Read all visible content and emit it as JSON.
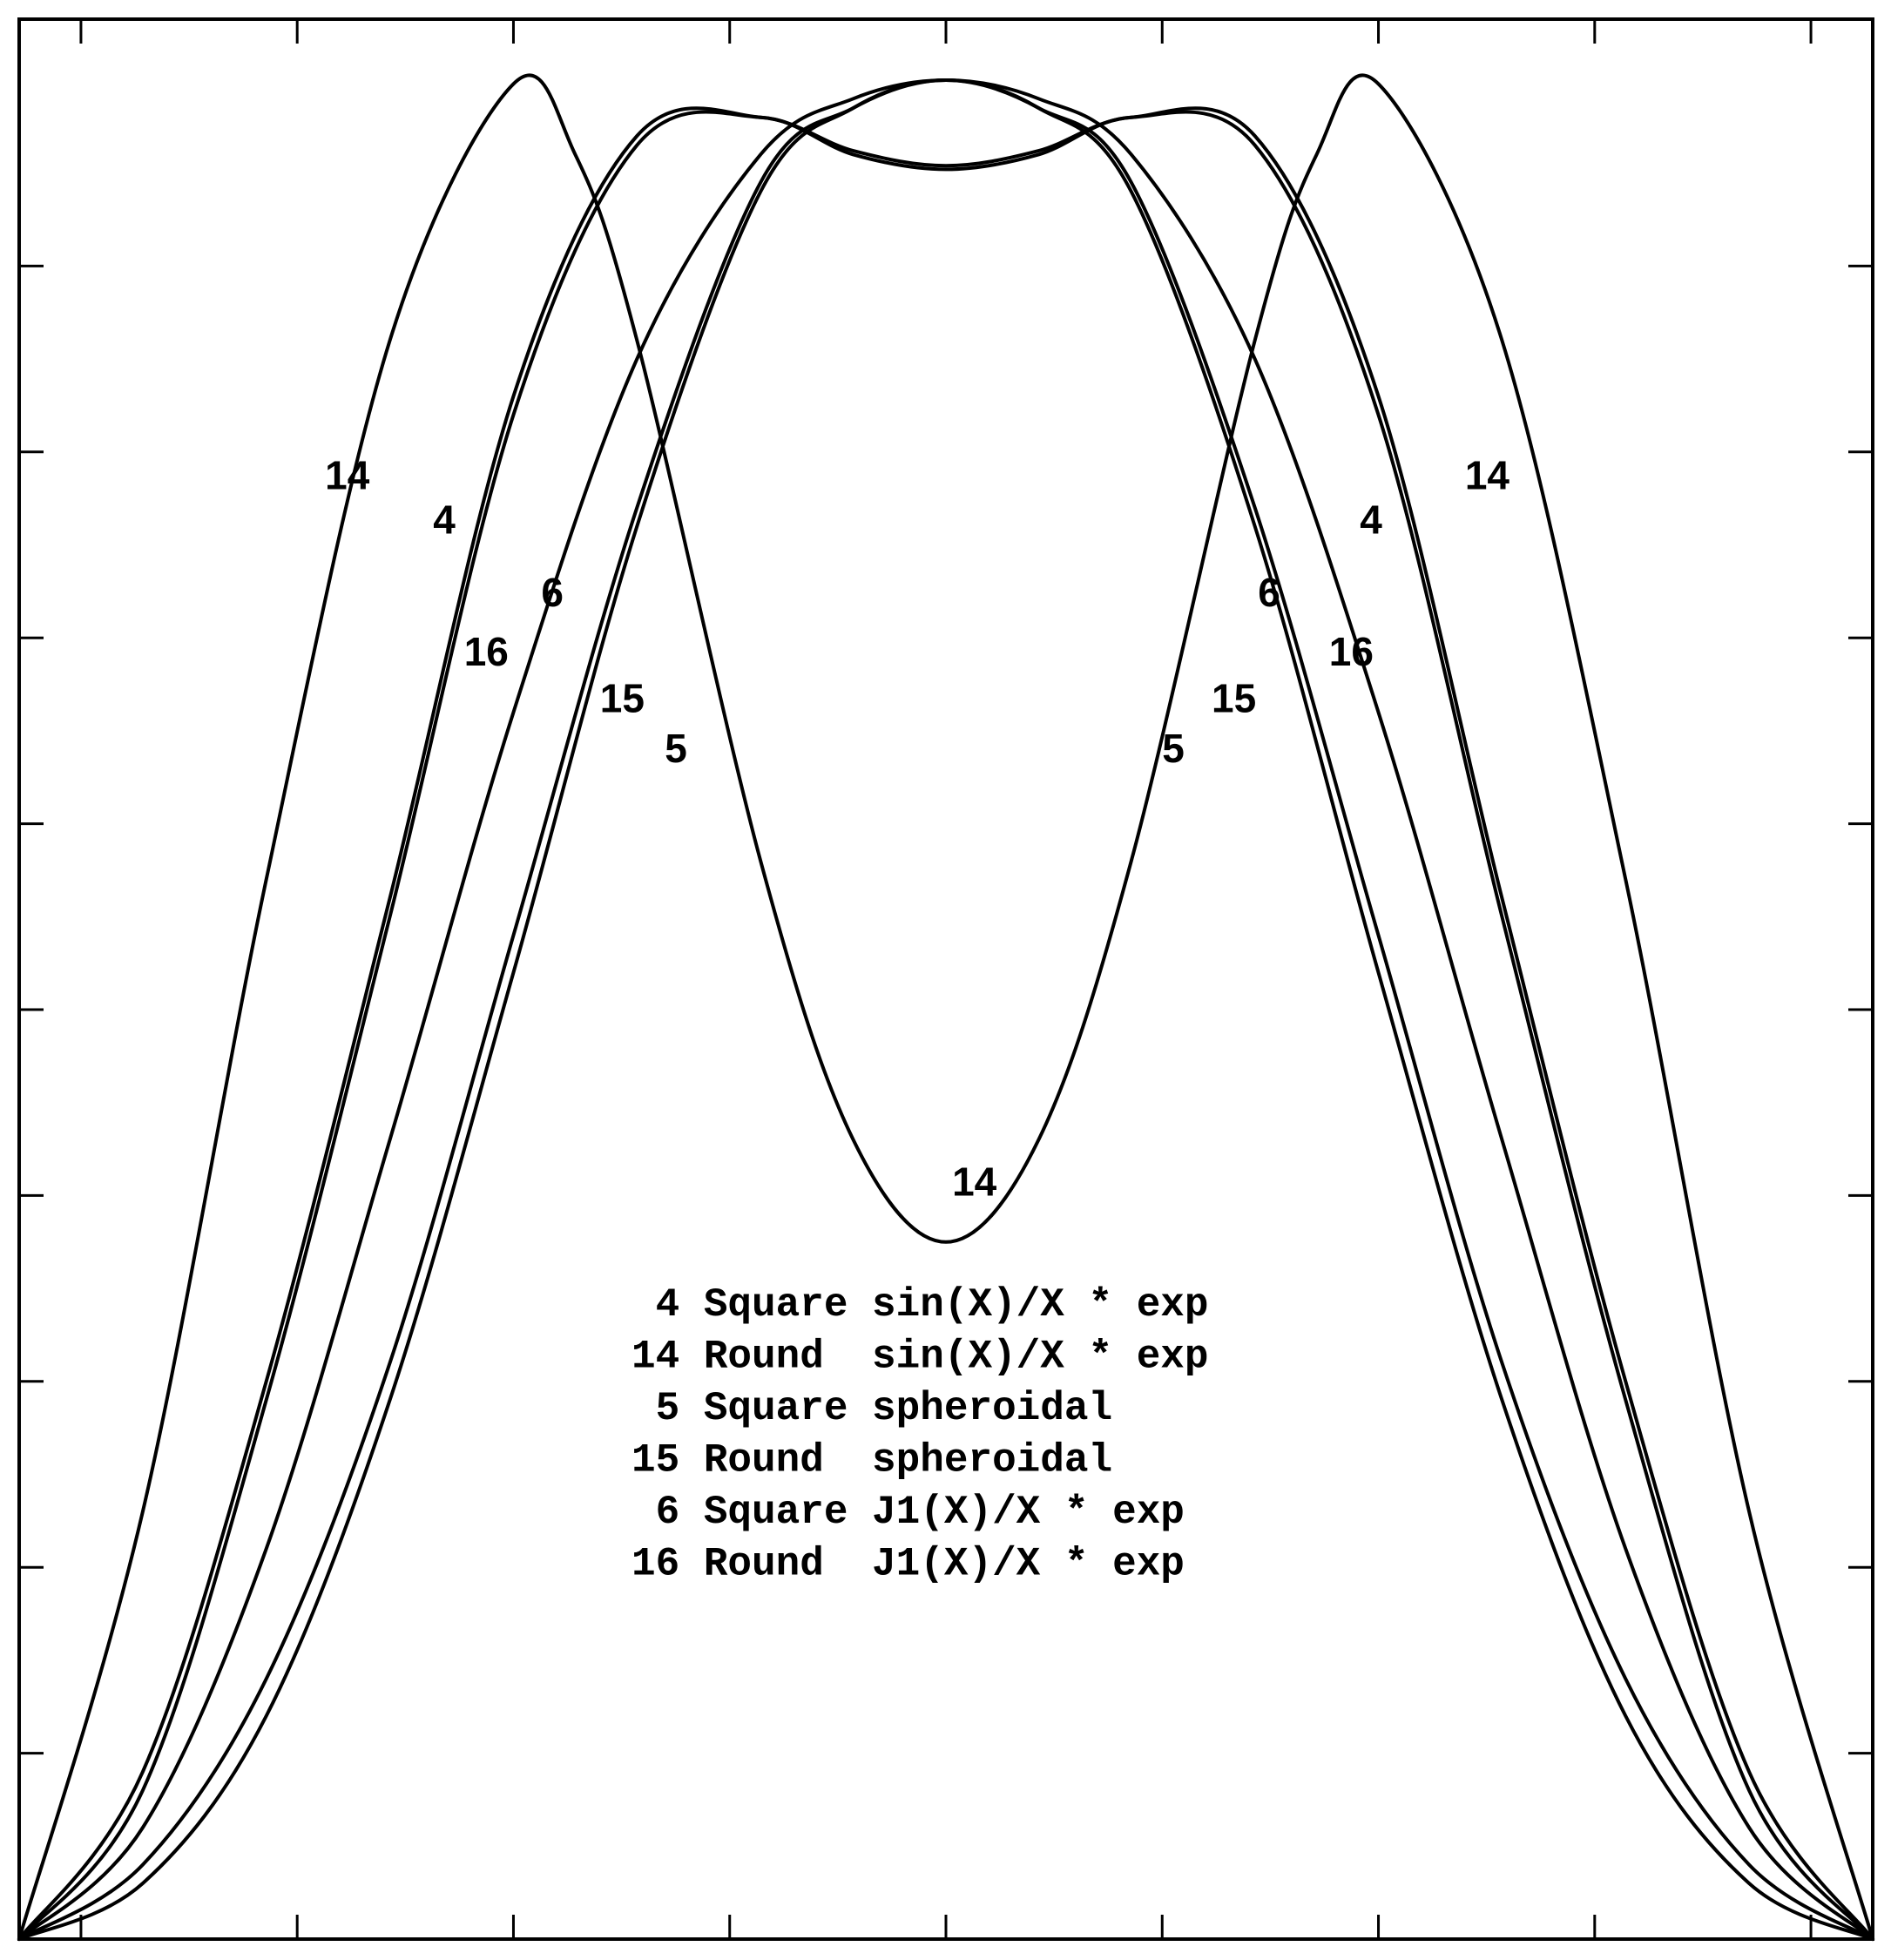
{
  "chart_data": {
    "type": "line",
    "title": "",
    "xlabel": "",
    "ylabel": "",
    "xlim": [
      -3,
      3
    ],
    "ylim": [
      0,
      1.0
    ],
    "grid": false,
    "x_ticks": [
      -2.8,
      -2.1,
      -1.4,
      -0.7,
      0,
      0.7,
      1.4,
      2.1,
      2.8
    ],
    "y_ticks": [
      0.1,
      0.2,
      0.3,
      0.4,
      0.5,
      0.6,
      0.7,
      0.8,
      0.9
    ],
    "series": [
      {
        "name": "4",
        "x": [
          -3,
          -2.6,
          -2.2,
          -1.8,
          -1.4,
          -1.0,
          -0.6,
          -0.3,
          0,
          0.3,
          0.6,
          1.0,
          1.4,
          1.8,
          2.2,
          2.6,
          3
        ],
        "y": [
          0,
          0.09,
          0.3,
          0.56,
          0.83,
          0.97,
          0.98,
          0.962,
          0.954,
          0.962,
          0.98,
          0.97,
          0.83,
          0.56,
          0.3,
          0.09,
          0
        ]
      },
      {
        "name": "14",
        "x": [
          -3,
          -2.6,
          -2.2,
          -1.8,
          -1.4,
          -1.2,
          -1.0,
          -0.6,
          -0.3,
          0,
          0.3,
          0.6,
          1.0,
          1.2,
          1.4,
          1.8,
          2.2,
          2.6,
          3
        ],
        "y": [
          0,
          0.23,
          0.57,
          0.86,
          0.998,
          0.96,
          0.86,
          0.58,
          0.43,
          0.375,
          0.43,
          0.58,
          0.86,
          0.96,
          0.998,
          0.86,
          0.57,
          0.23,
          0
        ]
      },
      {
        "name": "5",
        "x": [
          -3,
          -2.6,
          -2.2,
          -1.8,
          -1.4,
          -1.0,
          -0.6,
          -0.3,
          0,
          0.3,
          0.6,
          1.0,
          1.4,
          1.8,
          2.2,
          2.6,
          3
        ],
        "y": [
          0,
          0.03,
          0.12,
          0.29,
          0.52,
          0.76,
          0.94,
          0.985,
          1.0,
          0.985,
          0.94,
          0.76,
          0.52,
          0.29,
          0.12,
          0.03,
          0
        ]
      },
      {
        "name": "15",
        "x": [
          -3,
          -2.6,
          -2.2,
          -1.8,
          -1.4,
          -1.0,
          -0.6,
          -0.3,
          0,
          0.3,
          0.6,
          1.0,
          1.4,
          1.8,
          2.2,
          2.6,
          3
        ],
        "y": [
          0,
          0.04,
          0.14,
          0.31,
          0.54,
          0.77,
          0.945,
          0.985,
          1.0,
          0.985,
          0.945,
          0.77,
          0.54,
          0.31,
          0.14,
          0.04,
          0
        ]
      },
      {
        "name": "6",
        "x": [
          -3,
          -2.6,
          -2.2,
          -1.8,
          -1.4,
          -1.0,
          -0.6,
          -0.3,
          0,
          0.3,
          0.6,
          1.0,
          1.4,
          1.8,
          2.2,
          2.6,
          3
        ],
        "y": [
          0,
          0.06,
          0.21,
          0.43,
          0.66,
          0.85,
          0.96,
          0.99,
          1.0,
          0.99,
          0.96,
          0.85,
          0.66,
          0.43,
          0.21,
          0.06,
          0
        ]
      },
      {
        "name": "16",
        "x": [
          -3,
          -2.6,
          -2.2,
          -1.8,
          -1.4,
          -1.0,
          -0.6,
          -0.3,
          0,
          0.3,
          0.6,
          1.0,
          1.4,
          1.8,
          2.2,
          2.6,
          3
        ],
        "y": [
          0,
          0.08,
          0.29,
          0.55,
          0.82,
          0.965,
          0.98,
          0.96,
          0.952,
          0.96,
          0.98,
          0.965,
          0.82,
          0.55,
          0.29,
          0.08,
          0
        ]
      }
    ],
    "curve_labels": [
      {
        "text": "14",
        "x": -2.01,
        "y": 0.78
      },
      {
        "text": "4",
        "x": -1.66,
        "y": 0.756
      },
      {
        "text": "6",
        "x": -1.31,
        "y": 0.717
      },
      {
        "text": "16",
        "x": -1.56,
        "y": 0.685
      },
      {
        "text": "15",
        "x": -1.12,
        "y": 0.66
      },
      {
        "text": "5",
        "x": -0.91,
        "y": 0.633
      },
      {
        "text": "14",
        "x": 0.02,
        "y": 0.4
      },
      {
        "text": "5",
        "x": 0.7,
        "y": 0.633
      },
      {
        "text": "15",
        "x": 0.86,
        "y": 0.66
      },
      {
        "text": "6",
        "x": 1.01,
        "y": 0.717
      },
      {
        "text": "16",
        "x": 1.24,
        "y": 0.685
      },
      {
        "text": "4",
        "x": 1.34,
        "y": 0.756
      },
      {
        "text": "14",
        "x": 1.68,
        "y": 0.78
      }
    ],
    "legend": [
      " 4 Square sin(X)/X * exp",
      "14 Round  sin(X)/X * exp",
      " 5 Square spheroidal",
      "15 Round  spheroidal",
      " 6 Square J1(X)/X * exp",
      "16 Round  J1(X)/X * exp"
    ],
    "legend_position": "bottom-center"
  }
}
